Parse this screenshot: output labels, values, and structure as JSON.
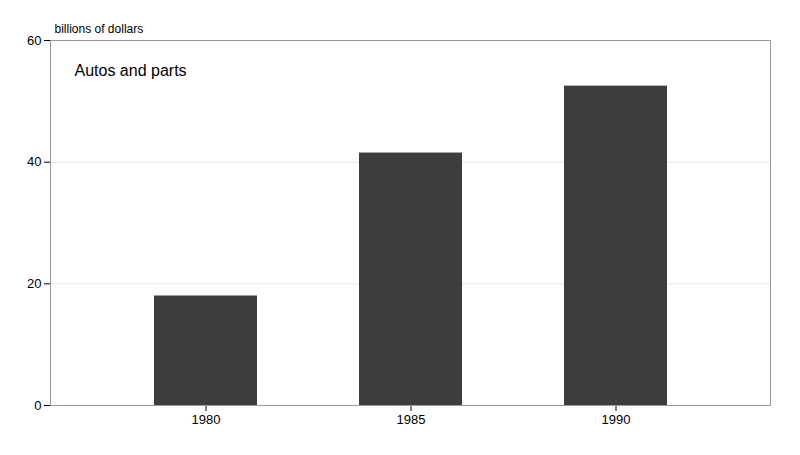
{
  "chart_data": {
    "type": "bar",
    "title": "Autos and parts",
    "ylabel": "billions of dollars",
    "categories": [
      "1980",
      "1985",
      "1990"
    ],
    "values": [
      18.0,
      41.5,
      52.5
    ],
    "color": "#3d3d3d",
    "ylim": [
      0,
      60
    ],
    "yticks": [
      0,
      20,
      40,
      60
    ],
    "grid": true
  }
}
